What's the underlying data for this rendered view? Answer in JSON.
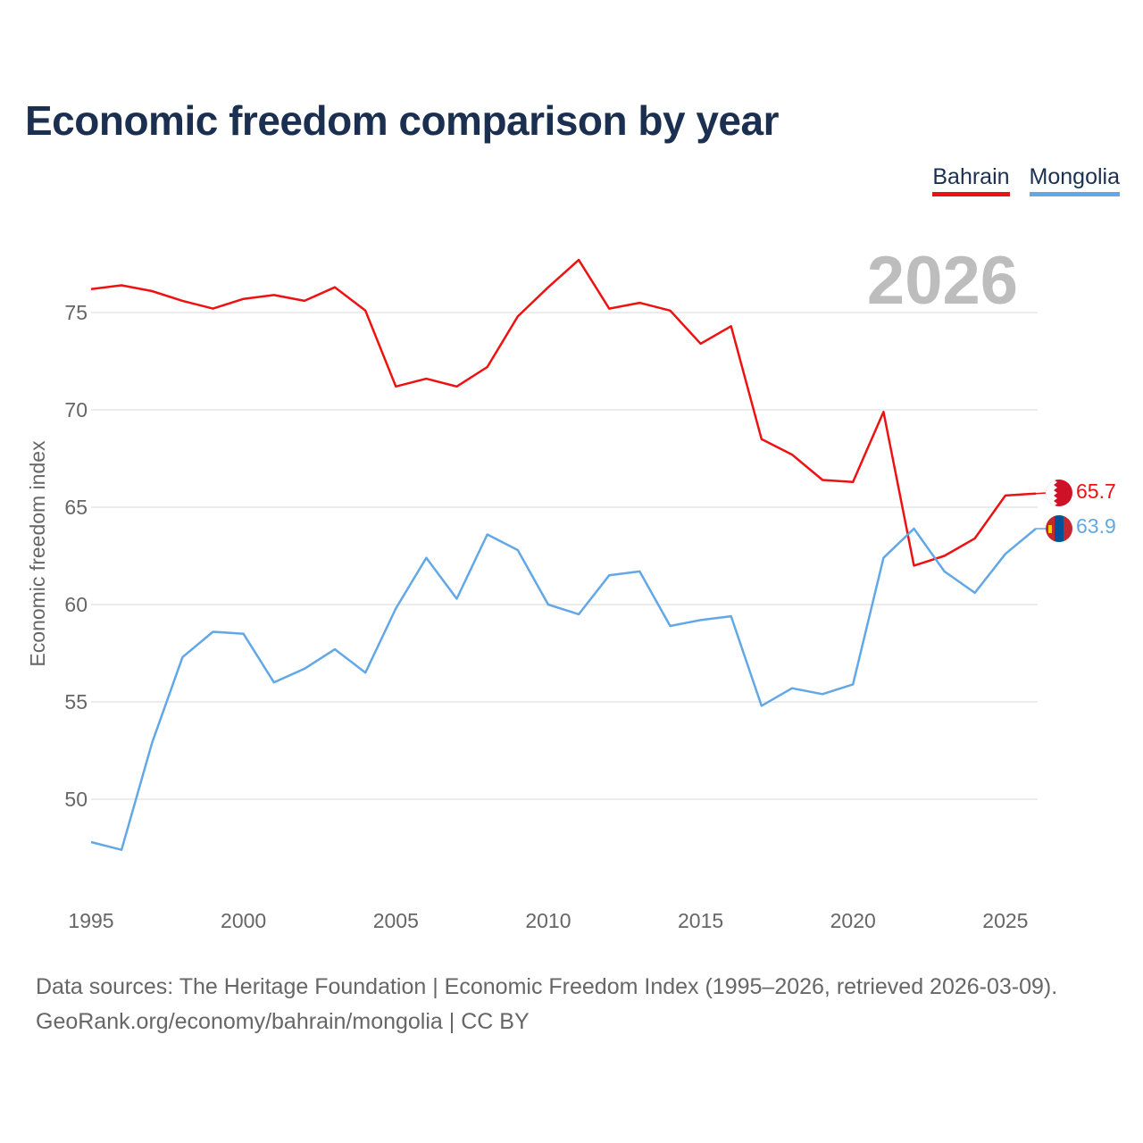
{
  "title": "Economic freedom comparison by year",
  "legend": [
    {
      "label": "Bahrain",
      "color": "#ee1111"
    },
    {
      "label": "Mongolia",
      "color": "#62a8e6"
    }
  ],
  "footer": {
    "line1": "Data sources: The Heritage Foundation | Economic Freedom Index (1995–2026, retrieved 2026-03-09).",
    "line2": "GeoRank.org/economy/bahrain/mongolia | CC BY"
  },
  "chart_data": {
    "type": "line",
    "title": "Economic freedom comparison by year",
    "watermark_year": "2026",
    "xlabel": "",
    "ylabel": "Economic freedom index",
    "xlim": [
      1995,
      2026
    ],
    "ylim": [
      45,
      80
    ],
    "xticks": [
      1995,
      2000,
      2005,
      2010,
      2015,
      2020,
      2025
    ],
    "yticks": [
      50,
      55,
      60,
      65,
      70,
      75
    ],
    "grid": true,
    "legend_position": "top-right",
    "x": [
      1995,
      1996,
      1997,
      1998,
      1999,
      2000,
      2001,
      2002,
      2003,
      2004,
      2005,
      2006,
      2007,
      2008,
      2009,
      2010,
      2011,
      2012,
      2013,
      2014,
      2015,
      2016,
      2017,
      2018,
      2019,
      2020,
      2021,
      2022,
      2023,
      2024,
      2025,
      2026
    ],
    "series": [
      {
        "name": "Bahrain",
        "color": "#ee1111",
        "end_label": "65.7",
        "values": [
          76.2,
          76.4,
          76.1,
          75.6,
          75.2,
          75.7,
          75.9,
          75.6,
          76.3,
          75.1,
          71.2,
          71.6,
          71.2,
          72.2,
          74.8,
          76.3,
          77.7,
          75.2,
          75.5,
          75.1,
          73.4,
          74.3,
          68.5,
          67.7,
          66.4,
          66.3,
          69.9,
          62.0,
          62.5,
          63.4,
          65.6,
          65.7
        ]
      },
      {
        "name": "Mongolia",
        "color": "#62a8e6",
        "end_label": "63.9",
        "values": [
          47.8,
          47.4,
          52.9,
          57.3,
          58.6,
          58.5,
          56.0,
          56.7,
          57.7,
          56.5,
          59.8,
          62.4,
          60.3,
          63.6,
          62.8,
          60.0,
          59.5,
          61.5,
          61.7,
          58.9,
          59.2,
          59.4,
          54.8,
          55.7,
          55.4,
          55.9,
          62.4,
          63.9,
          61.7,
          60.6,
          62.6,
          63.9
        ]
      }
    ]
  }
}
